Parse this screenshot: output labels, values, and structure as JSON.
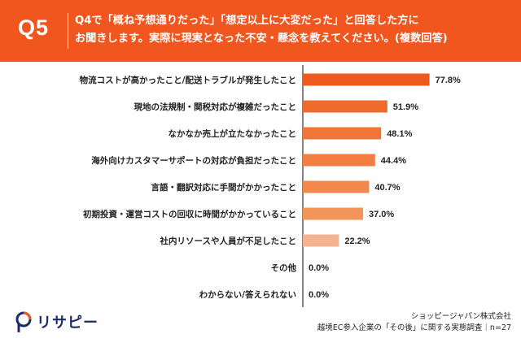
{
  "header": {
    "q_label": "Q5",
    "question_line1": "Q4で「概ね予想通りだった」「想定以上に大変だった」と回答した方に",
    "question_line2": "お聞きします。実際に現実となった不安・懸念を教えてください。(複数回答)"
  },
  "chart_data": {
    "type": "bar",
    "orientation": "horizontal",
    "categories": [
      "物流コストが高かったこと/配送トラブルが発生したこと",
      "現地の法規制・関税対応が複雑だったこと",
      "なかなか売上が立たなかったこと",
      "海外向けカスタマーサポートの対応が負担だったこと",
      "言語・翻訳対応に手間がかかったこと",
      "初期投資・運営コストの回収に時間がかかっていること",
      "社内リソースや人員が不足したこと",
      "その他",
      "わからない/答えられない"
    ],
    "values": [
      77.8,
      51.9,
      48.1,
      44.4,
      40.7,
      37.0,
      22.2,
      0.0,
      0.0
    ],
    "value_labels": [
      "77.8%",
      "51.9%",
      "48.1%",
      "44.4%",
      "40.7%",
      "37.0%",
      "22.2%",
      "0.0%",
      "0.0%"
    ],
    "xlim": [
      0,
      100
    ],
    "grid": false,
    "bar_colors": [
      "#ee5a1f",
      "#f06a2e",
      "#f17537",
      "#f27e42",
      "#f3884d",
      "#f39459",
      "#f6b391",
      "#f8cdb6",
      "#f8cdb6"
    ]
  },
  "footer": {
    "logo_text": "リサピー",
    "source_line1": "ショッピージャパン株式会社",
    "source_line2": "越境EC参入企業の「その後」に関する実態調査｜n=27"
  },
  "colors": {
    "accent": "#f0561d",
    "axis": "#333333",
    "logo_navy": "#1c2b6b",
    "logo_orange": "#f0561d"
  }
}
